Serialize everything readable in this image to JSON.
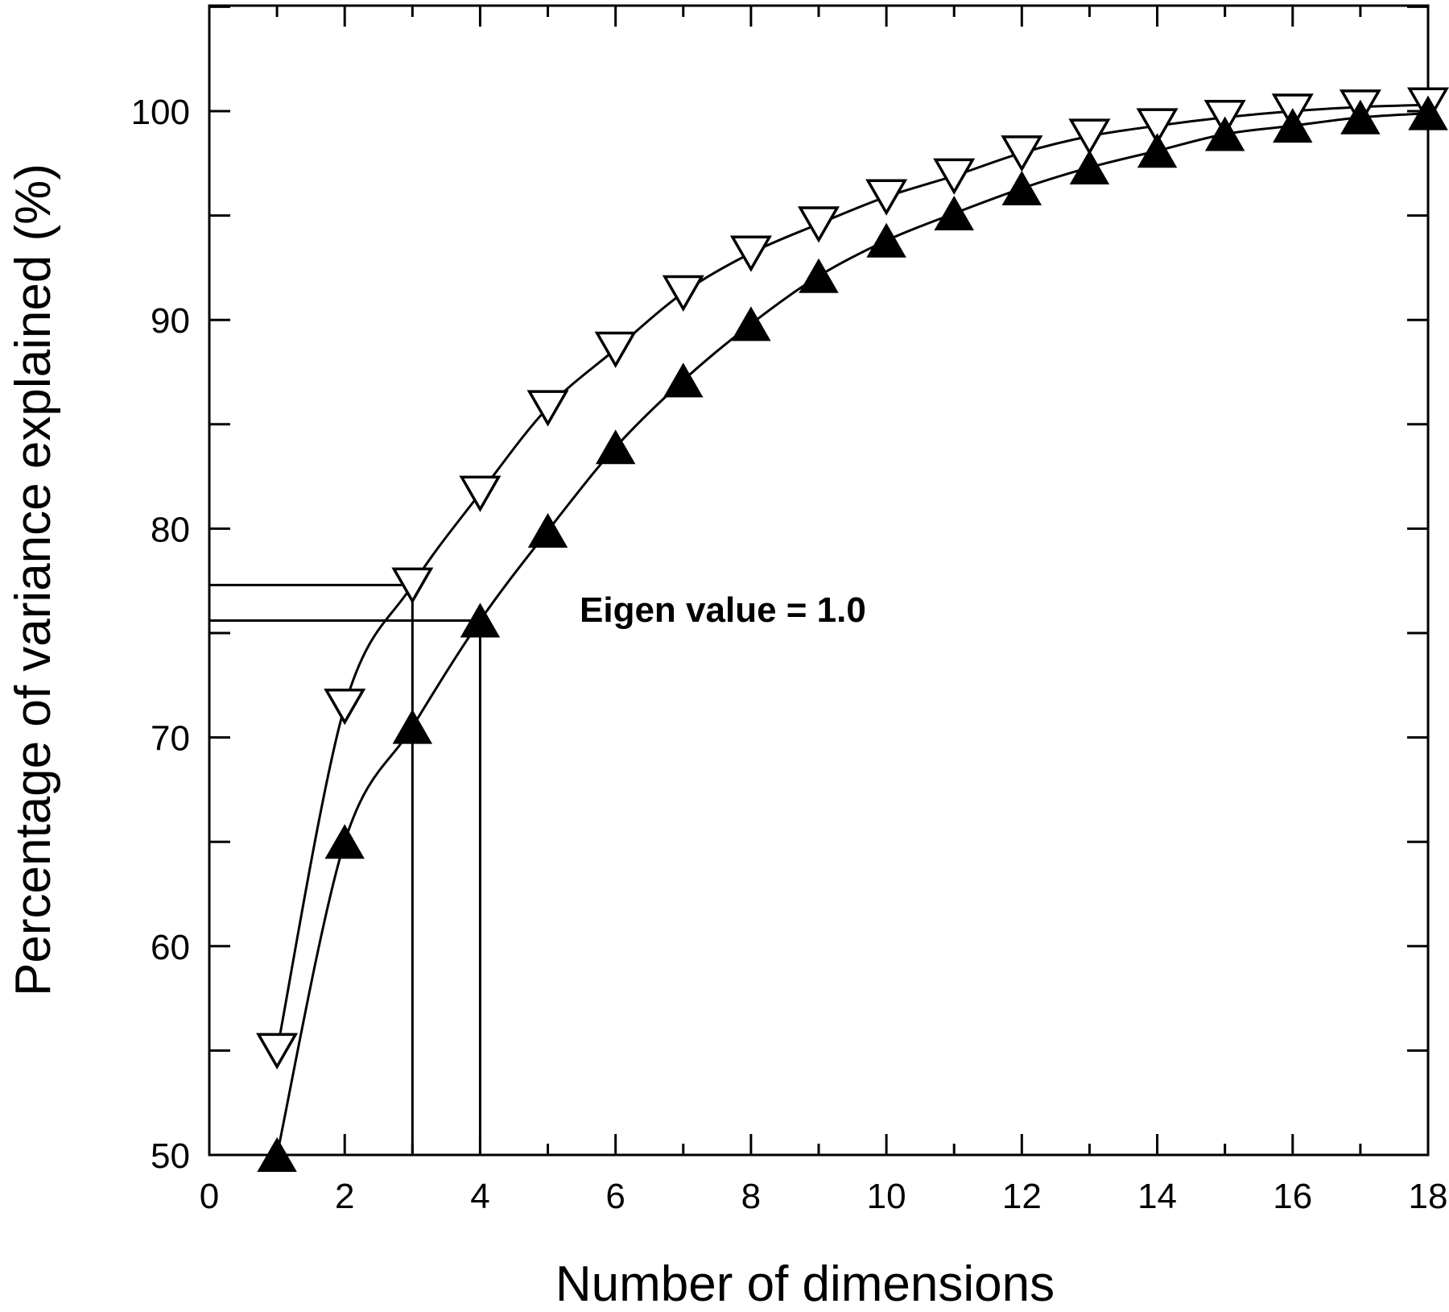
{
  "chart_data": {
    "type": "line",
    "title": "",
    "xlabel": "Number of dimensions",
    "ylabel": "Percentage of variance explained (%)",
    "xlim": [
      0,
      18
    ],
    "ylim": [
      50,
      105
    ],
    "x_ticks": [
      0,
      2,
      4,
      6,
      8,
      10,
      12,
      14,
      16,
      18
    ],
    "y_ticks": [
      50,
      60,
      70,
      80,
      90,
      100
    ],
    "grid": false,
    "annotation": "Eigen value = 1.0",
    "series": [
      {
        "marker": "open-down-triangle",
        "x": [
          1,
          2,
          3,
          4,
          5,
          6,
          7,
          8,
          9,
          10,
          11,
          12,
          13,
          14,
          15,
          16,
          17,
          18
        ],
        "values": [
          55.0,
          71.5,
          77.3,
          81.7,
          85.8,
          88.6,
          91.3,
          93.2,
          94.6,
          95.9,
          96.9,
          98.0,
          98.8,
          99.3,
          99.7,
          100.0,
          100.2,
          100.3
        ]
      },
      {
        "marker": "filled-up-triangle",
        "x": [
          1,
          2,
          3,
          4,
          5,
          6,
          7,
          8,
          9,
          10,
          11,
          12,
          13,
          14,
          15,
          16,
          17,
          18
        ],
        "values": [
          50.0,
          65.0,
          70.5,
          75.6,
          79.9,
          83.9,
          87.1,
          89.8,
          92.1,
          93.8,
          95.1,
          96.3,
          97.3,
          98.1,
          98.9,
          99.3,
          99.7,
          99.9
        ]
      }
    ],
    "reference_lines": [
      {
        "x": 3,
        "y": 77.3
      },
      {
        "x": 4,
        "y": 75.6
      }
    ]
  }
}
